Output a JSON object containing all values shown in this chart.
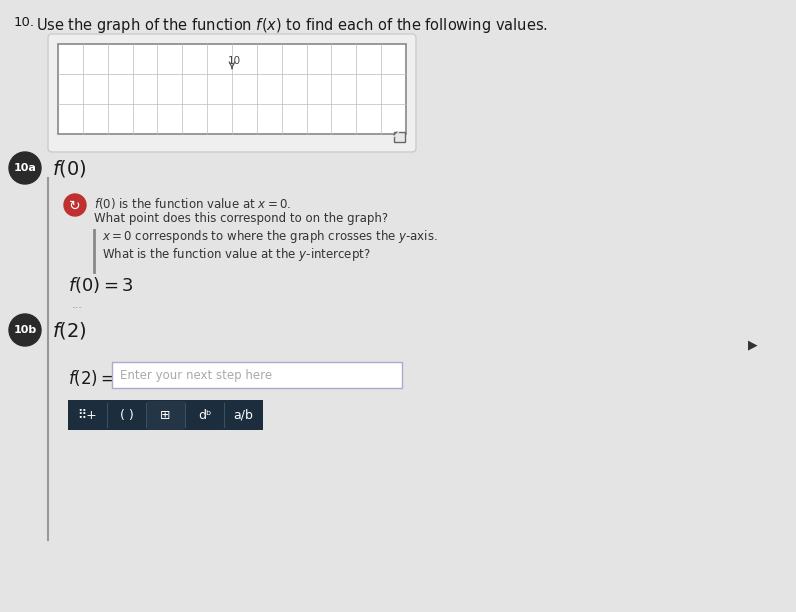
{
  "page_bg": "#c8c8c8",
  "content_bg": "#e8e8e8",
  "white": "#ffffff",
  "title_number": "10.",
  "title_text": "Use the graph of the function $f(x)$ to find each of the following values.",
  "graph_box_facecolor": "#e0dede",
  "graph_inner_color": "#f0eeee",
  "graph_border_color": "#888888",
  "graph_grid_color": "#bbbbbb",
  "graph_rows": 3,
  "graph_cols": 14,
  "graph_axis_label": "10",
  "expand_icon_color": "#555555",
  "badge_10a_color": "#2a2a2a",
  "badge_10b_color": "#2a2a2a",
  "section_10a_label": "10a",
  "section_10b_label": "10b",
  "section_10a_title": "$f(0)$",
  "section_10b_title": "$f(2)$",
  "hint_icon_color": "#c03030",
  "hint_line1": "$f(0)$ is the function value at $x = 0$.",
  "hint_line2": "What point does this correspond to on the graph?",
  "hint_line3": "$x = 0$ corresponds to where the graph crosses the $y$-axis.",
  "hint_line4": "What is the function value at the $y$-intercept?",
  "answer_10a": "$f(0) = 3$",
  "dots": "...",
  "answer_10b_text": "$f(2) =$",
  "input_placeholder": "Enter your next step here",
  "input_border_color": "#aaaacc",
  "toolbar_bg": "#1c2d3d",
  "toolbar_color": "#ffffff",
  "left_bar_color": "#999999",
  "hint_bar_color": "#888888",
  "text_color_dark": "#1a1a1a",
  "text_color_medium": "#333333",
  "text_color_hint": "#aaaaaa",
  "cursor_color": "#333333"
}
